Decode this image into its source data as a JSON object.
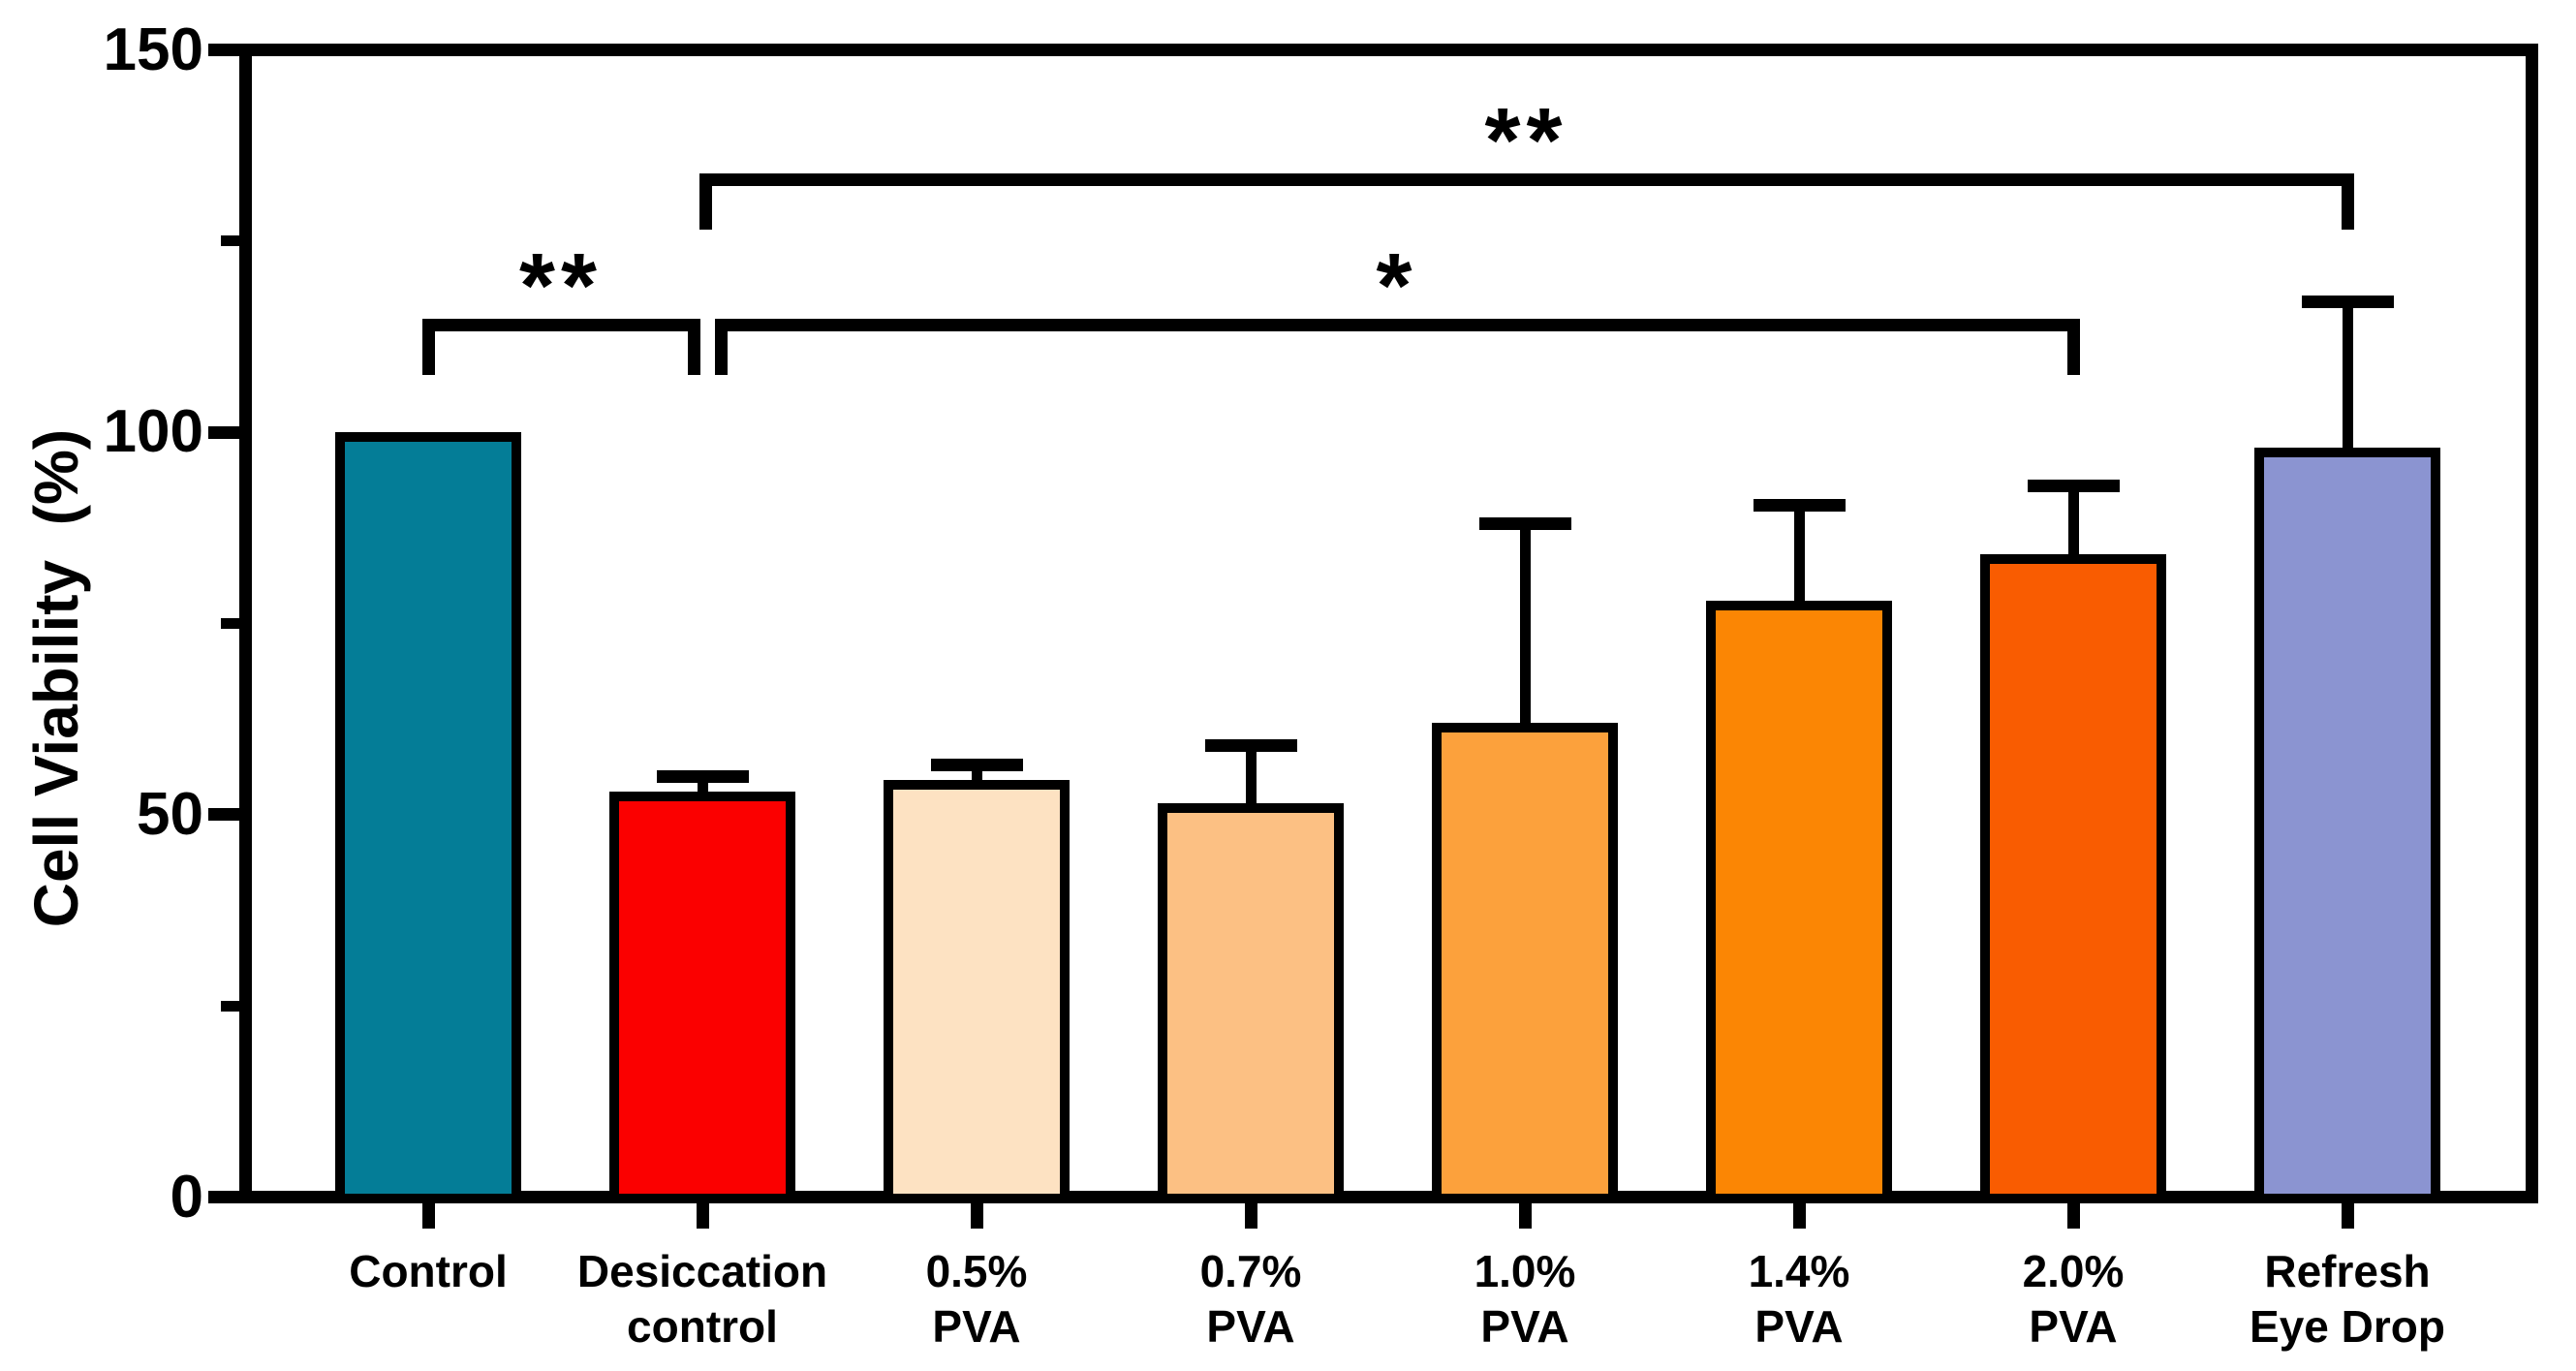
{
  "chart_data": {
    "type": "bar",
    "title": "",
    "xlabel": "",
    "ylabel": "Cell Viability  (%)",
    "ylim": [
      0,
      150
    ],
    "y_ticks": [
      0,
      50,
      100,
      150
    ],
    "y_minor_ticks": [
      25,
      75,
      125
    ],
    "grid": "off",
    "legend": "none",
    "frame": "full box, left and bottom axes with outward ticks",
    "categories": [
      "Control",
      "Desiccation\ncontrol",
      "0.5%\nPVA",
      "0.7%\nPVA",
      "1.0%\nPVA",
      "1.4%\nPVA",
      "2.0%\nPVA",
      "Refresh\nEye Drop"
    ],
    "values": [
      100,
      53,
      54.5,
      51.5,
      62,
      78,
      84,
      98
    ],
    "error_upper": [
      0,
      2,
      2,
      7.5,
      26,
      12.5,
      9,
      19
    ],
    "bar_colors": [
      "#047D97",
      "#FB0000",
      "#FDE2C2",
      "#FCC083",
      "#FCA13C",
      "#FB8604",
      "#F95C01",
      "#8B94D1"
    ],
    "outline_color": "#000000",
    "significance": [
      {
        "label": "**",
        "from": 0,
        "to": 1,
        "height": 114,
        "from_offset": 0,
        "to_offset": -9
      },
      {
        "label": "*",
        "from": 1,
        "to": 6,
        "height": 114,
        "from_offset": 19,
        "to_offset": 0
      },
      {
        "label": "**",
        "from": 1,
        "to": 7,
        "height": 133,
        "from_offset": 3,
        "to_offset": 0
      }
    ]
  }
}
